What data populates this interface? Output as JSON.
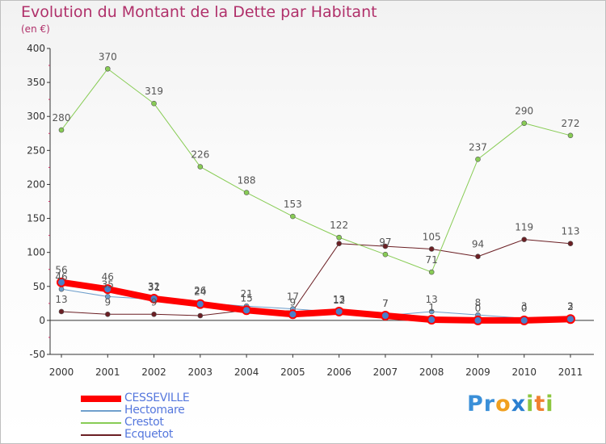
{
  "title": "Evolution du Montant de la Dette par Habitant",
  "unit_label": "(en €)",
  "logo": {
    "letters": [
      {
        "ch": "P",
        "color": "#3a8fd8"
      },
      {
        "ch": "r",
        "color": "#3a8fd8"
      },
      {
        "ch": "o",
        "color": "#f0a020"
      },
      {
        "ch": "x",
        "color": "#2b7fd0"
      },
      {
        "ch": "i",
        "color": "#8cc63f"
      },
      {
        "ch": "t",
        "color": "#f08030"
      },
      {
        "ch": "i",
        "color": "#8cc63f"
      }
    ]
  },
  "chart_data": {
    "type": "line",
    "title": "Evolution du Montant de la Dette par Habitant",
    "ylabel": "(en €)",
    "x": [
      "2000",
      "2001",
      "2002",
      "2003",
      "2004",
      "2005",
      "2006",
      "2007",
      "2008",
      "2009",
      "2010",
      "2011"
    ],
    "ylim": [
      -50,
      400
    ],
    "yticks": [
      "-50",
      "0",
      "50",
      "100",
      "150",
      "200",
      "250",
      "300",
      "350",
      "400"
    ],
    "grid": false,
    "legend": "bottom-left",
    "series": [
      {
        "name": "Ecquetot",
        "color": "#6b1f24",
        "width": 1,
        "values": [
          13,
          9,
          9,
          7,
          15,
          14,
          113,
          109,
          105,
          94,
          119,
          113
        ],
        "labels": [
          "13",
          "9",
          "9",
          "",
          "",
          "",
          "",
          "",
          "105",
          "94",
          "119",
          "113"
        ]
      },
      {
        "name": "Crestot",
        "color": "#88cc55",
        "width": 1,
        "values": [
          280,
          370,
          319,
          226,
          188,
          153,
          122,
          97,
          71,
          237,
          290,
          272
        ],
        "labels": [
          "280",
          "370",
          "319",
          "226",
          "188",
          "153",
          "122",
          "97",
          "71",
          "237",
          "290",
          "272"
        ]
      },
      {
        "name": "Hectomare",
        "color": "#6f9fcc",
        "width": 1,
        "values": [
          46,
          35,
          31,
          26,
          21,
          17,
          12,
          7,
          13,
          8,
          3,
          3
        ],
        "labels": [
          "46",
          "35",
          "31",
          "26",
          "21",
          "17",
          "12",
          "7",
          "13",
          "8",
          "3",
          "3"
        ]
      },
      {
        "name": "CESSEVILLE",
        "color": "#ff0000",
        "width": 8,
        "values": [
          56,
          46,
          32,
          24,
          15,
          9,
          13,
          7,
          1,
          0,
          0,
          2
        ],
        "labels": [
          "56",
          "46",
          "32",
          "24",
          "15",
          "9",
          "13",
          "7",
          "1",
          "0",
          "0",
          "2"
        ]
      }
    ],
    "legend_order": [
      "CESSEVILLE",
      "Hectomare",
      "Crestot",
      "Ecquetot"
    ]
  }
}
